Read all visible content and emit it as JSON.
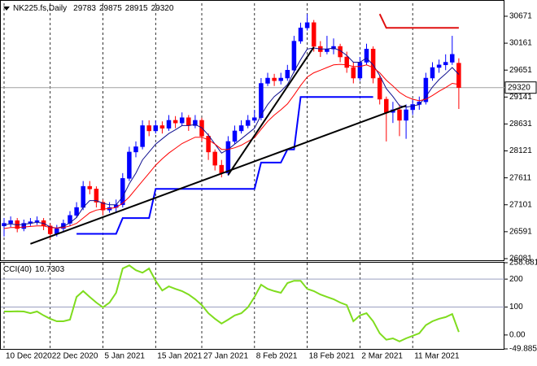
{
  "chart_data": [
    {
      "type": "candlestick",
      "title": "NK225.fs,Daily",
      "categories": [
        "10 Dec 2020",
        null,
        null,
        null,
        null,
        null,
        null,
        "22 Dec 2020",
        null,
        null,
        null,
        null,
        null,
        null,
        null,
        "5 Jan 2021",
        null,
        null,
        null,
        null,
        null,
        null,
        null,
        "15 Jan 2021",
        null,
        null,
        null,
        null,
        null,
        null,
        "27 Jan 2021",
        null,
        null,
        null,
        null,
        null,
        null,
        null,
        "8 Feb 2021",
        null,
        null,
        null,
        null,
        null,
        null,
        null,
        "18 Feb 2021",
        null,
        null,
        null,
        null,
        null,
        null,
        null,
        "2 Mar 2021",
        null,
        null,
        null,
        null,
        null,
        null,
        null,
        "11 Mar 2021",
        null,
        null,
        null,
        null,
        null,
        null,
        null
      ],
      "open": [
        26700,
        26750,
        26800,
        26650,
        26750,
        26780,
        26800,
        26700,
        26550,
        26650,
        26750,
        26900,
        27050,
        27450,
        27400,
        27150,
        27000,
        27050,
        27100,
        27600,
        28100,
        28200,
        28600,
        28500,
        28600,
        28550,
        28700,
        28650,
        28750,
        28600,
        28700,
        28400,
        28100,
        27850,
        27700,
        28300,
        28500,
        28600,
        28700,
        28750,
        29400,
        29500,
        29450,
        29500,
        29650,
        30200,
        30450,
        30550,
        30100,
        30000,
        30050,
        30100,
        29900,
        29700,
        29500,
        29800,
        30050,
        29500,
        29100,
        28850,
        28900,
        28700,
        28900,
        29000,
        29050,
        29500,
        29700,
        29750,
        29800,
        29783
      ],
      "high": [
        26850,
        26880,
        26850,
        26820,
        26850,
        26880,
        26850,
        26750,
        26720,
        26820,
        26980,
        27150,
        27550,
        27550,
        27450,
        27200,
        27150,
        27200,
        27700,
        28200,
        28300,
        28700,
        28700,
        28700,
        28680,
        28800,
        28780,
        28850,
        28800,
        28800,
        28750,
        28450,
        28150,
        27950,
        28400,
        28600,
        28700,
        28800,
        28900,
        29500,
        29600,
        29580,
        29600,
        29750,
        30300,
        30550,
        30714,
        30600,
        30200,
        30300,
        30250,
        30150,
        30000,
        29800,
        29900,
        30150,
        30100,
        29550,
        29150,
        29050,
        29000,
        29000,
        29100,
        29150,
        29600,
        29800,
        29850,
        29950,
        30300,
        29875
      ],
      "low": [
        26500,
        26680,
        26580,
        26600,
        26700,
        26720,
        26620,
        26450,
        26500,
        26600,
        26700,
        26850,
        27000,
        27300,
        27050,
        26900,
        26950,
        26950,
        27050,
        27550,
        28000,
        28150,
        28400,
        28450,
        28450,
        28500,
        28550,
        28600,
        28500,
        28550,
        28300,
        27950,
        27750,
        27620,
        27650,
        28250,
        28450,
        28550,
        28650,
        28700,
        29350,
        29350,
        29380,
        29450,
        29600,
        30150,
        30400,
        30000,
        29900,
        29950,
        29950,
        29800,
        29600,
        29400,
        29450,
        29750,
        29400,
        29000,
        28300,
        28650,
        28400,
        28350,
        28800,
        28900,
        29000,
        29450,
        29600,
        29650,
        29750,
        28915
      ],
      "close": [
        26750,
        26800,
        26650,
        26750,
        26780,
        26800,
        26700,
        26550,
        26650,
        26750,
        26900,
        27050,
        27450,
        27400,
        27150,
        27000,
        27050,
        27100,
        27600,
        28100,
        28200,
        28600,
        28500,
        28600,
        28550,
        28700,
        28650,
        28750,
        28600,
        28700,
        28400,
        28100,
        27850,
        27700,
        28300,
        28500,
        28600,
        28700,
        28750,
        29400,
        29500,
        29450,
        29500,
        29650,
        30200,
        30450,
        30550,
        30100,
        30000,
        30050,
        30100,
        29900,
        29700,
        29500,
        29800,
        30050,
        29500,
        29100,
        28850,
        28900,
        28700,
        28900,
        29000,
        29050,
        29500,
        29700,
        29750,
        29800,
        29950,
        29320
      ],
      "up_color": "#0000ff",
      "down_color": "#ff0000",
      "overlays": [
        {
          "color": "#101090",
          "width": 1,
          "values": [
            26720,
            26740,
            26720,
            26730,
            26750,
            26770,
            26750,
            26680,
            26660,
            26690,
            26760,
            26860,
            27050,
            27180,
            27180,
            27130,
            27100,
            27100,
            27250,
            27500,
            27700,
            27950,
            28100,
            28250,
            28350,
            28450,
            28520,
            28600,
            28600,
            28620,
            28560,
            28420,
            28250,
            28080,
            28150,
            28250,
            28350,
            28450,
            28550,
            28800,
            29000,
            29150,
            29250,
            29380,
            29620,
            29850,
            30050,
            30070,
            30050,
            30050,
            30070,
            30020,
            29930,
            29800,
            29800,
            29880,
            29750,
            29550,
            29300,
            29150,
            28980,
            28950,
            28970,
            29000,
            29150,
            29330,
            29470,
            29580,
            29700,
            29570
          ]
        },
        {
          "color": "#ff0000",
          "width": 1,
          "values": [
            26650,
            26670,
            26670,
            26680,
            26690,
            26700,
            26700,
            26670,
            26660,
            26670,
            26700,
            26750,
            26850,
            26950,
            27000,
            27020,
            27030,
            27050,
            27130,
            27250,
            27400,
            27550,
            27700,
            27850,
            27970,
            28080,
            28170,
            28260,
            28320,
            28380,
            28380,
            28330,
            28250,
            28150,
            28150,
            28180,
            28230,
            28300,
            28370,
            28530,
            28680,
            28800,
            28900,
            29010,
            29180,
            29360,
            29520,
            29600,
            29650,
            29700,
            29750,
            29760,
            29750,
            29720,
            29720,
            29750,
            29700,
            29600,
            29460,
            29350,
            29230,
            29150,
            29100,
            29070,
            29100,
            29170,
            29250,
            29320,
            29400,
            29380
          ]
        },
        {
          "color": "#0000ff",
          "width": 2,
          "values": [
            null,
            null,
            null,
            null,
            null,
            null,
            null,
            null,
            null,
            null,
            null,
            26550,
            26550,
            26550,
            26550,
            26550,
            26550,
            26550,
            26850,
            26850,
            26850,
            26850,
            26850,
            27400,
            27400,
            27400,
            27400,
            27400,
            27400,
            27400,
            27400,
            27400,
            27400,
            27400,
            27400,
            27400,
            27400,
            27400,
            27400,
            27900,
            27900,
            27900,
            27900,
            28150,
            28150,
            29141,
            29141,
            29141,
            29141,
            29141,
            29141,
            29141,
            29141,
            29141,
            29141,
            29141,
            29141,
            null,
            null,
            null,
            null,
            null,
            null,
            null,
            null,
            null,
            null,
            null,
            null,
            null
          ]
        },
        {
          "color": "#e01010",
          "width": 2,
          "values": [
            null,
            null,
            null,
            null,
            null,
            null,
            null,
            null,
            null,
            null,
            null,
            null,
            null,
            null,
            null,
            null,
            null,
            null,
            null,
            null,
            null,
            null,
            null,
            null,
            null,
            null,
            null,
            null,
            null,
            null,
            null,
            null,
            null,
            null,
            null,
            null,
            null,
            null,
            null,
            null,
            null,
            null,
            null,
            null,
            null,
            null,
            null,
            null,
            null,
            null,
            null,
            null,
            null,
            null,
            null,
            null,
            null,
            30714,
            30450,
            30450,
            30450,
            30450,
            30450,
            30450,
            30450,
            30450,
            30450,
            30450,
            30450,
            30450
          ]
        }
      ],
      "trend_lines": [
        {
          "color": "#000000",
          "x": [
            4,
            61
          ],
          "y": [
            26360,
            28980
          ]
        },
        {
          "color": "#000000",
          "x": [
            34,
            47
          ],
          "y": [
            27667,
            30086
          ]
        }
      ],
      "ylim": [
        26050,
        30917
      ],
      "yticks": [
        30671,
        30161,
        29651,
        29141,
        28631,
        28121,
        27611,
        27101,
        26591,
        26081
      ],
      "grid_x": true
    },
    {
      "type": "line",
      "title": "CCI(40)",
      "color": "#7fdc1e",
      "values": [
        84,
        84,
        85,
        84,
        78,
        84,
        70,
        58,
        49,
        49,
        55,
        136,
        157,
        136,
        116,
        99,
        116,
        151,
        238,
        249,
        232,
        223,
        238,
        194,
        159,
        174,
        165,
        157,
        145,
        128,
        107,
        78,
        58,
        41,
        55,
        70,
        78,
        99,
        136,
        180,
        165,
        157,
        151,
        186,
        194,
        194,
        165,
        157,
        145,
        136,
        128,
        116,
        107,
        49,
        70,
        78,
        49,
        6,
        -17,
        -12,
        -23,
        -12,
        -3,
        6,
        35,
        49,
        58,
        64,
        75,
        10.7303
      ],
      "ylim": [
        -49.8851,
        258.6815
      ],
      "yticks": [
        258.6815,
        200,
        100,
        {
          "value": 0,
          "label": "0.00"
        },
        -49.8851
      ],
      "levels": [
        200,
        100
      ]
    }
  ]
}
